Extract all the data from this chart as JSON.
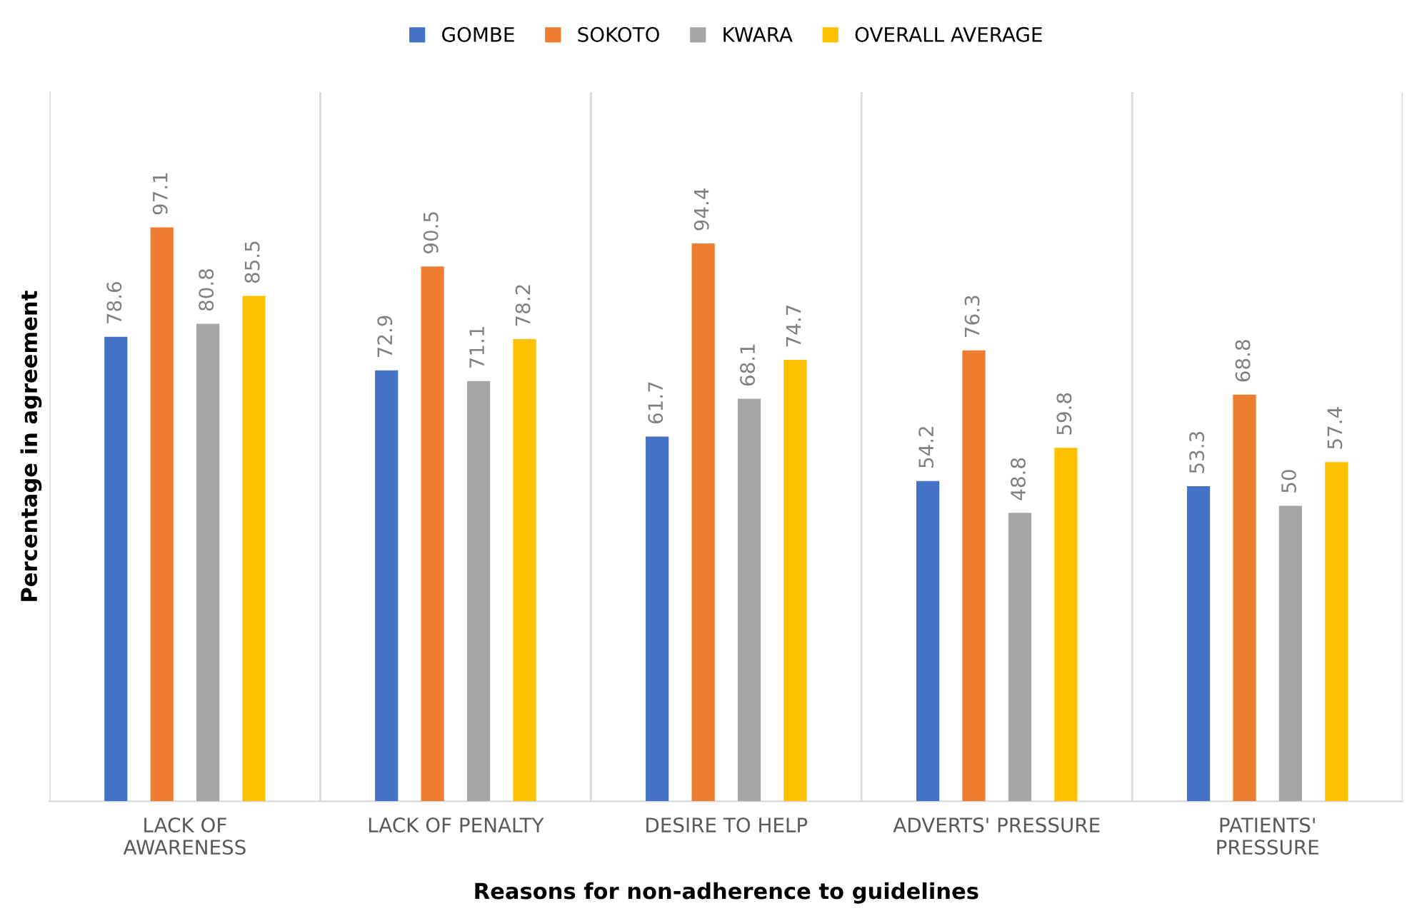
{
  "chart_data": {
    "type": "bar",
    "xlabel": "Reasons for non-adherence to guidelines",
    "ylabel": "Percentage in agreement",
    "categories": [
      "LACK OF\nAWARENESS",
      "LACK OF PENALTY",
      "DESIRE TO HELP",
      "ADVERTS' PRESSURE",
      "PATIENTS'\nPRESSURE"
    ],
    "series": [
      {
        "name": "GOMBE",
        "color": "#4472c4",
        "values": [
          78.6,
          72.9,
          61.7,
          54.2,
          53.3
        ]
      },
      {
        "name": "SOKOTO",
        "color": "#ed7d31",
        "values": [
          97.1,
          90.5,
          94.4,
          76.3,
          68.8
        ]
      },
      {
        "name": "KWARA",
        "color": "#a5a5a5",
        "values": [
          80.8,
          71.1,
          68.1,
          48.8,
          50
        ]
      },
      {
        "name": "OVERALL AVERAGE",
        "color": "#ffc000",
        "values": [
          85.5,
          78.2,
          74.7,
          59.8,
          57.4
        ]
      }
    ],
    "ylim": [
      0,
      120
    ],
    "tick_labels": "x",
    "data_labels": true,
    "grid": "x",
    "legend": "top"
  }
}
